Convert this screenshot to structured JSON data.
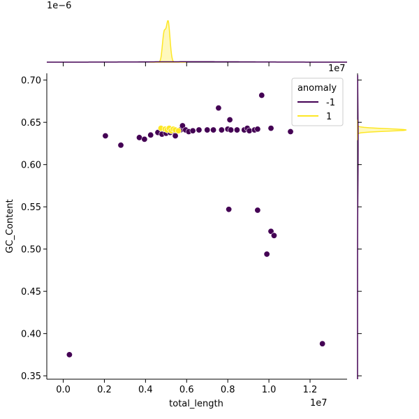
{
  "chart_data": {
    "type": "scatter",
    "title": "",
    "xlabel": "total_length",
    "ylabel": "GC_Content",
    "x_offset_label": "1e7",
    "y_offset_label": "",
    "x_ticks": [
      "0.0",
      "0.2",
      "0.4",
      "0.6",
      "0.8",
      "1.0",
      "1.2"
    ],
    "x_tick_values": [
      0,
      2000000,
      4000000,
      6000000,
      8000000,
      10000000,
      12000000
    ],
    "y_ticks": [
      "0.35",
      "0.40",
      "0.45",
      "0.50",
      "0.55",
      "0.60",
      "0.65",
      "0.70"
    ],
    "y_tick_values": [
      0.35,
      0.4,
      0.45,
      0.5,
      0.55,
      0.6,
      0.65,
      0.7
    ],
    "xlim": [
      -800000,
      13800000
    ],
    "ylim": [
      0.346,
      0.708
    ],
    "grid": false,
    "legend": {
      "title": "anomaly",
      "placement": "top-right",
      "entries": [
        {
          "label": "-1",
          "color": "#440154"
        },
        {
          "label": "1",
          "color": "#fde725"
        }
      ]
    },
    "marginal_top": {
      "offset_label": "1e−6",
      "density_peak_x": 5100000
    },
    "marginal_right": {
      "offset_label": "1e7",
      "density_peak_y": 0.641
    },
    "series": [
      {
        "name": "-1",
        "color": "#440154",
        "points": [
          [
            300000,
            0.375
          ],
          [
            2050000,
            0.634
          ],
          [
            2800000,
            0.623
          ],
          [
            3700000,
            0.632
          ],
          [
            3950000,
            0.63
          ],
          [
            4250000,
            0.635
          ],
          [
            4600000,
            0.638
          ],
          [
            4800000,
            0.636
          ],
          [
            5000000,
            0.637
          ],
          [
            5200000,
            0.638
          ],
          [
            5400000,
            0.639
          ],
          [
            5450000,
            0.634
          ],
          [
            5700000,
            0.641
          ],
          [
            5800000,
            0.646
          ],
          [
            5950000,
            0.641
          ],
          [
            6100000,
            0.639
          ],
          [
            6300000,
            0.64
          ],
          [
            6600000,
            0.641
          ],
          [
            7000000,
            0.641
          ],
          [
            7300000,
            0.641
          ],
          [
            7550000,
            0.667
          ],
          [
            7700000,
            0.641
          ],
          [
            8000000,
            0.642
          ],
          [
            8100000,
            0.653
          ],
          [
            8150000,
            0.641
          ],
          [
            8450000,
            0.641
          ],
          [
            8800000,
            0.641
          ],
          [
            8950000,
            0.643
          ],
          [
            9050000,
            0.64
          ],
          [
            9300000,
            0.641
          ],
          [
            9450000,
            0.642
          ],
          [
            9650000,
            0.682
          ],
          [
            10100000,
            0.643
          ],
          [
            11050000,
            0.639
          ],
          [
            8050000,
            0.547
          ],
          [
            9450000,
            0.546
          ],
          [
            10100000,
            0.521
          ],
          [
            10250000,
            0.516
          ],
          [
            9900000,
            0.494
          ],
          [
            12600000,
            0.388
          ]
        ]
      },
      {
        "name": "1",
        "color": "#fde725",
        "points": [
          [
            4750000,
            0.643
          ],
          [
            4950000,
            0.642
          ],
          [
            5050000,
            0.641
          ],
          [
            5150000,
            0.643
          ],
          [
            5250000,
            0.64
          ],
          [
            5350000,
            0.642
          ],
          [
            5450000,
            0.641
          ],
          [
            5600000,
            0.64
          ]
        ]
      }
    ]
  }
}
